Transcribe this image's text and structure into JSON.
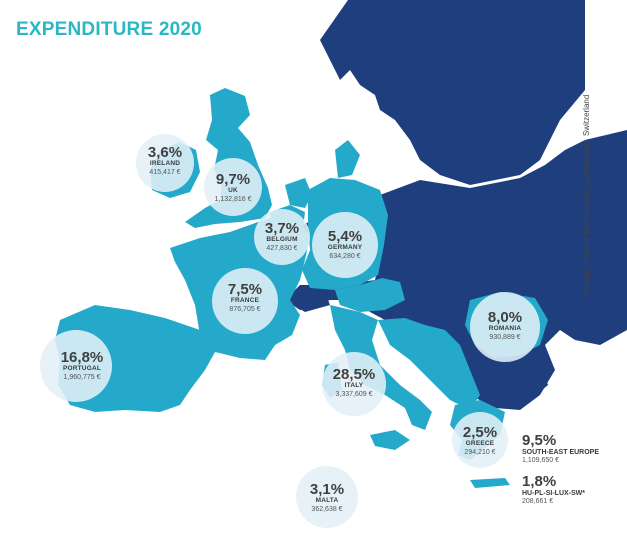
{
  "title": "EXPENDITURE 2020",
  "footnote": "*Hungary, Poland and Slovenia, Luxembourg, Switzerland",
  "colors": {
    "dark_blue": "#1f3e7e",
    "light_blue": "#24a9cb",
    "bubble": "#e2f0f7",
    "title": "#2bb7c4"
  },
  "countries": {
    "ireland": {
      "pct": "3,6%",
      "name": "IRELAND",
      "amount": "415,417 €"
    },
    "uk": {
      "pct": "9,7%",
      "name": "UK",
      "amount": "1,132,816 €"
    },
    "belgium": {
      "pct": "3,7%",
      "name": "BELGIUM",
      "amount": "427,830 €"
    },
    "germany": {
      "pct": "5,4%",
      "name": "GERMANY",
      "amount": "634,280 €"
    },
    "france": {
      "pct": "7,5%",
      "name": "FRANCE",
      "amount": "876,705 €"
    },
    "romania": {
      "pct": "8,0%",
      "name": "ROMANIA",
      "amount": "930,889 €"
    },
    "portugal": {
      "pct": "16,8%",
      "name": "PORTUGAL",
      "amount": "1,960,775 €"
    },
    "italy": {
      "pct": "28,5%",
      "name": "ITALY",
      "amount": "3,337,609 €"
    },
    "greece": {
      "pct": "2,5%",
      "name": "GREECE",
      "amount": "294,210 €"
    },
    "malta": {
      "pct": "3,1%",
      "name": "MALTA",
      "amount": "362,638 €"
    }
  },
  "side_items": {
    "south_east_europe": {
      "pct": "9,5%",
      "name": "SOUTH-EAST EUROPE",
      "amount": "1,109,650 €"
    },
    "hu_pl_si_lux_sw": {
      "pct": "1,8%",
      "name": "HU-PL-SI-LUX-SW*",
      "amount": "208,661 €"
    }
  }
}
